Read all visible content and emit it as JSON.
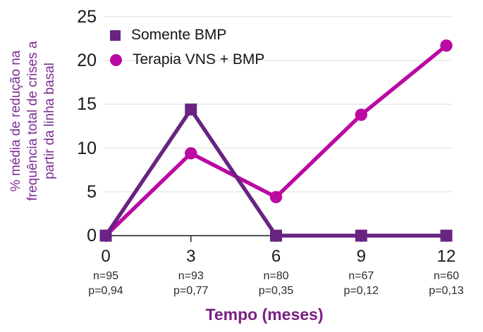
{
  "chart_data": {
    "type": "line",
    "title": "",
    "x": [
      0,
      3,
      6,
      9,
      12
    ],
    "x_tick_labels": [
      "0",
      "3",
      "6",
      "9",
      "12"
    ],
    "xlabel": "Tempo (meses)",
    "ylabel": "% média de redução na frequência total de crises a partir da linha basal",
    "ylabel_lines": [
      "% média de redução na",
      "frequência total de crises a",
      "partir da linha basal"
    ],
    "ylim": [
      0,
      25
    ],
    "yticks": [
      0,
      5,
      10,
      15,
      20,
      25
    ],
    "grid": "horizontal",
    "legend_position": "top-left-inside",
    "series": [
      {
        "name": "Somente BMP",
        "marker": "square",
        "color": "#682383",
        "values": [
          0,
          14.4,
          0,
          0,
          0
        ]
      },
      {
        "name": "Terapia VNS + BMP",
        "marker": "circle",
        "color": "#BB09A2",
        "values": [
          0,
          9.4,
          4.4,
          13.8,
          21.7
        ]
      }
    ],
    "annotations": [
      {
        "n": "n=95",
        "p": "p=0,94"
      },
      {
        "n": "n=93",
        "p": "p=0,77"
      },
      {
        "n": "n=80",
        "p": "p=0,35"
      },
      {
        "n": "n=67",
        "p": "p=0,12"
      },
      {
        "n": "n=60",
        "p": "p=0,13"
      }
    ],
    "colors": {
      "ylabel_text": "#7D2E95",
      "xlabel_text": "#7A2083",
      "tick_text": "#1a1a1a",
      "annotation_text": "#2b2b2b",
      "gridline": "#e4e4e4",
      "axis": "#3a3a3a",
      "background": "#ffffff"
    }
  }
}
